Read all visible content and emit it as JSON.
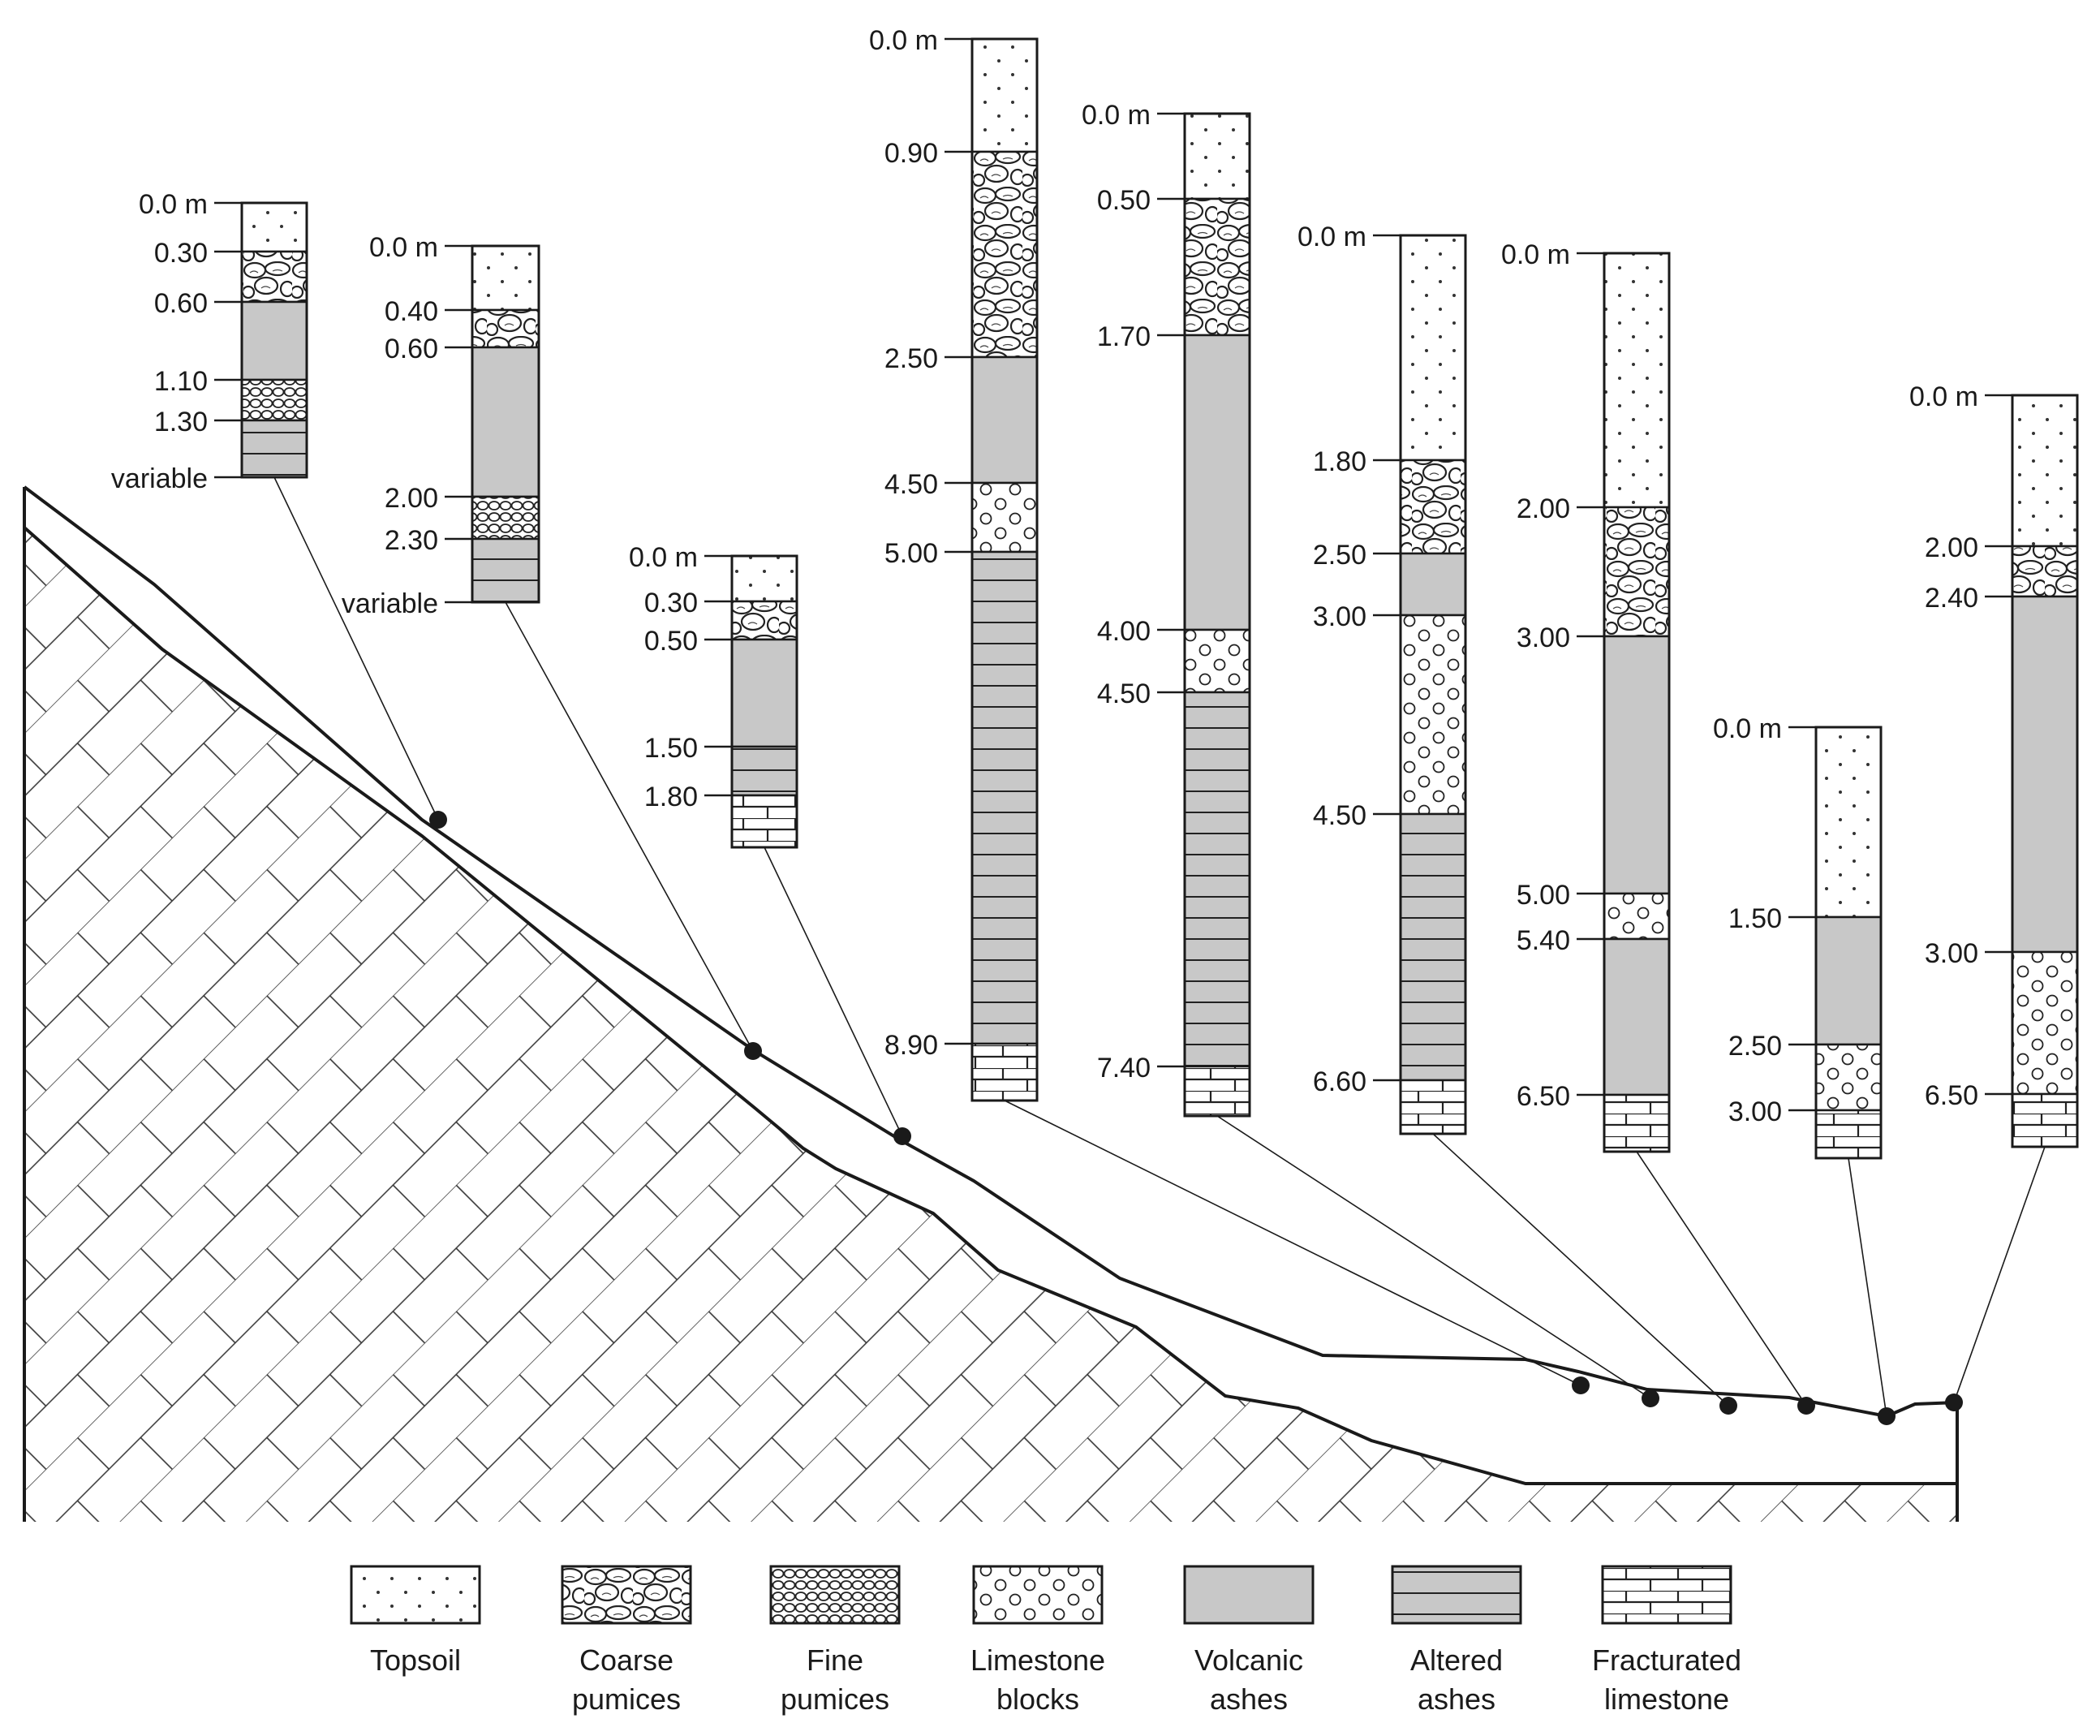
{
  "columns": [
    {
      "id": "c1",
      "labels": [
        "0.0 m",
        "0.30",
        "0.60",
        "1.10",
        "1.30",
        "variable"
      ],
      "layers": [
        "topsoil",
        "coarse",
        "ash",
        "fine",
        "altered"
      ]
    },
    {
      "id": "c2",
      "labels": [
        "0.0 m",
        "0.40",
        "0.60",
        "2.00",
        "2.30",
        "variable"
      ],
      "layers": [
        "topsoil",
        "coarse",
        "ash",
        "fine",
        "altered"
      ]
    },
    {
      "id": "c3",
      "labels": [
        "0.0 m",
        "0.30",
        "0.50",
        "1.50",
        "1.80"
      ],
      "layers": [
        "topsoil",
        "coarse",
        "ash",
        "altered",
        "limestone_frac"
      ]
    },
    {
      "id": "c4",
      "labels": [
        "0.0 m",
        "0.90",
        "2.50",
        "4.50",
        "5.00",
        "8.90"
      ],
      "layers": [
        "topsoil",
        "coarse",
        "ash",
        "blocks",
        "altered",
        "limestone_frac"
      ]
    },
    {
      "id": "c5",
      "labels": [
        "0.0 m",
        "0.50",
        "1.70",
        "4.00",
        "4.50",
        "7.40"
      ],
      "layers": [
        "topsoil",
        "coarse",
        "ash",
        "blocks",
        "altered",
        "limestone_frac"
      ]
    },
    {
      "id": "c6",
      "labels": [
        "0.0 m",
        "1.80",
        "2.50",
        "3.00",
        "4.50",
        "6.60"
      ],
      "layers": [
        "topsoil",
        "coarse",
        "ash",
        "blocks",
        "altered",
        "limestone_frac"
      ]
    },
    {
      "id": "c7",
      "labels": [
        "0.0 m",
        "2.00",
        "3.00",
        "5.00",
        "5.40",
        "6.50"
      ],
      "layers": [
        "topsoil",
        "coarse",
        "ash",
        "blocks",
        "ash",
        "limestone_frac"
      ]
    },
    {
      "id": "c8",
      "labels": [
        "0.0 m",
        "1.50",
        "2.50",
        "3.00"
      ],
      "layers": [
        "topsoil",
        "ash",
        "blocks",
        "limestone_frac"
      ]
    },
    {
      "id": "c9",
      "labels": [
        "0.0 m",
        "2.00",
        "2.40",
        "3.00",
        "6.50"
      ],
      "layers": [
        "topsoil",
        "coarse",
        "ash",
        "blocks",
        "limestone_frac"
      ]
    }
  ],
  "legend": [
    {
      "key": "topsoil",
      "lines": [
        "Topsoil"
      ]
    },
    {
      "key": "coarse",
      "lines": [
        "Coarse",
        "pumices"
      ]
    },
    {
      "key": "fine",
      "lines": [
        "Fine",
        "pumices"
      ]
    },
    {
      "key": "blocks",
      "lines": [
        "Limestone",
        "blocks"
      ]
    },
    {
      "key": "ash",
      "lines": [
        "Volcanic",
        "ashes"
      ]
    },
    {
      "key": "altered",
      "lines": [
        "Altered",
        "ashes"
      ]
    },
    {
      "key": "limestone_frac",
      "lines": [
        "Fracturated",
        "limestone"
      ]
    }
  ],
  "colors": {
    "ash": "#c8c8c8",
    "line": "#1a1a1a",
    "background": "#ffffff"
  }
}
